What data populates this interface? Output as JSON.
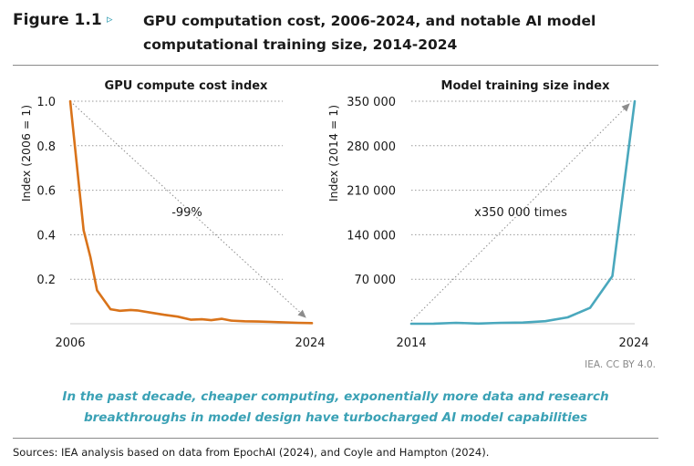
{
  "figure": {
    "label": "Figure 1.1",
    "arrow": "▹",
    "title_line1": "GPU computation cost, 2006-2024, and notable AI model",
    "title_line2": "computational training size, 2014-2024"
  },
  "chart_data": [
    {
      "type": "line",
      "title": "GPU compute cost index",
      "ylabel": "Index (2006 = 1)",
      "xlabel": "",
      "x_tick_labels": [
        "2006",
        "2024"
      ],
      "y_ticks": [
        0.2,
        0.4,
        0.6,
        0.8,
        1.0
      ],
      "y_tick_labels": [
        "0.2",
        "0.4",
        "0.6",
        "0.8",
        "1.0"
      ],
      "xlim": [
        2006,
        2024
      ],
      "ylim": [
        0,
        1.0
      ],
      "grid": true,
      "annotation": "-99%",
      "color": "#d9731a",
      "series": [
        {
          "name": "GPU compute cost index",
          "x": [
            2006,
            2007,
            2007.5,
            2008,
            2009,
            2009.7,
            2010.5,
            2011,
            2012,
            2013,
            2014,
            2015,
            2015.8,
            2016.5,
            2017.3,
            2018,
            2019,
            2020,
            2021,
            2022,
            2023,
            2024
          ],
          "y": [
            1.0,
            0.42,
            0.3,
            0.15,
            0.065,
            0.058,
            0.062,
            0.06,
            0.05,
            0.04,
            0.032,
            0.018,
            0.02,
            0.016,
            0.022,
            0.014,
            0.011,
            0.01,
            0.008,
            0.006,
            0.004,
            0.003
          ]
        }
      ]
    },
    {
      "type": "line",
      "title": "Model training size index",
      "ylabel": "Index (2014 = 1)",
      "xlabel": "",
      "x_tick_labels": [
        "2014",
        "2024"
      ],
      "y_ticks": [
        70000,
        140000,
        210000,
        280000,
        350000
      ],
      "y_tick_labels": [
        "70 000",
        "140 000",
        "210 000",
        "280 000",
        "350 000"
      ],
      "xlim": [
        2014,
        2024
      ],
      "ylim": [
        0,
        350000
      ],
      "grid": true,
      "annotation": "x350 000 times",
      "color": "#4aa8bd",
      "series": [
        {
          "name": "Model training size index",
          "x": [
            2014,
            2015,
            2016,
            2017,
            2018,
            2019,
            2020,
            2021,
            2022,
            2023,
            2024
          ],
          "y": [
            1,
            100,
            1500,
            300,
            1500,
            1800,
            4000,
            10000,
            25000,
            75000,
            350000
          ]
        }
      ]
    }
  ],
  "credit": "IEA. CC BY 4.0.",
  "takeaway_line1": "In the past decade, cheaper computing, exponentially more data and research",
  "takeaway_line2": "breakthroughs in model design have turbocharged AI model capabilities",
  "sources": "Sources: IEA analysis based on data from EpochAI (2024), and Coyle and Hampton (2024).",
  "colors": {
    "accent": "#3aa1b5",
    "orange": "#d9731a",
    "teal": "#4aa8bd",
    "grid": "#9a9a9a"
  }
}
